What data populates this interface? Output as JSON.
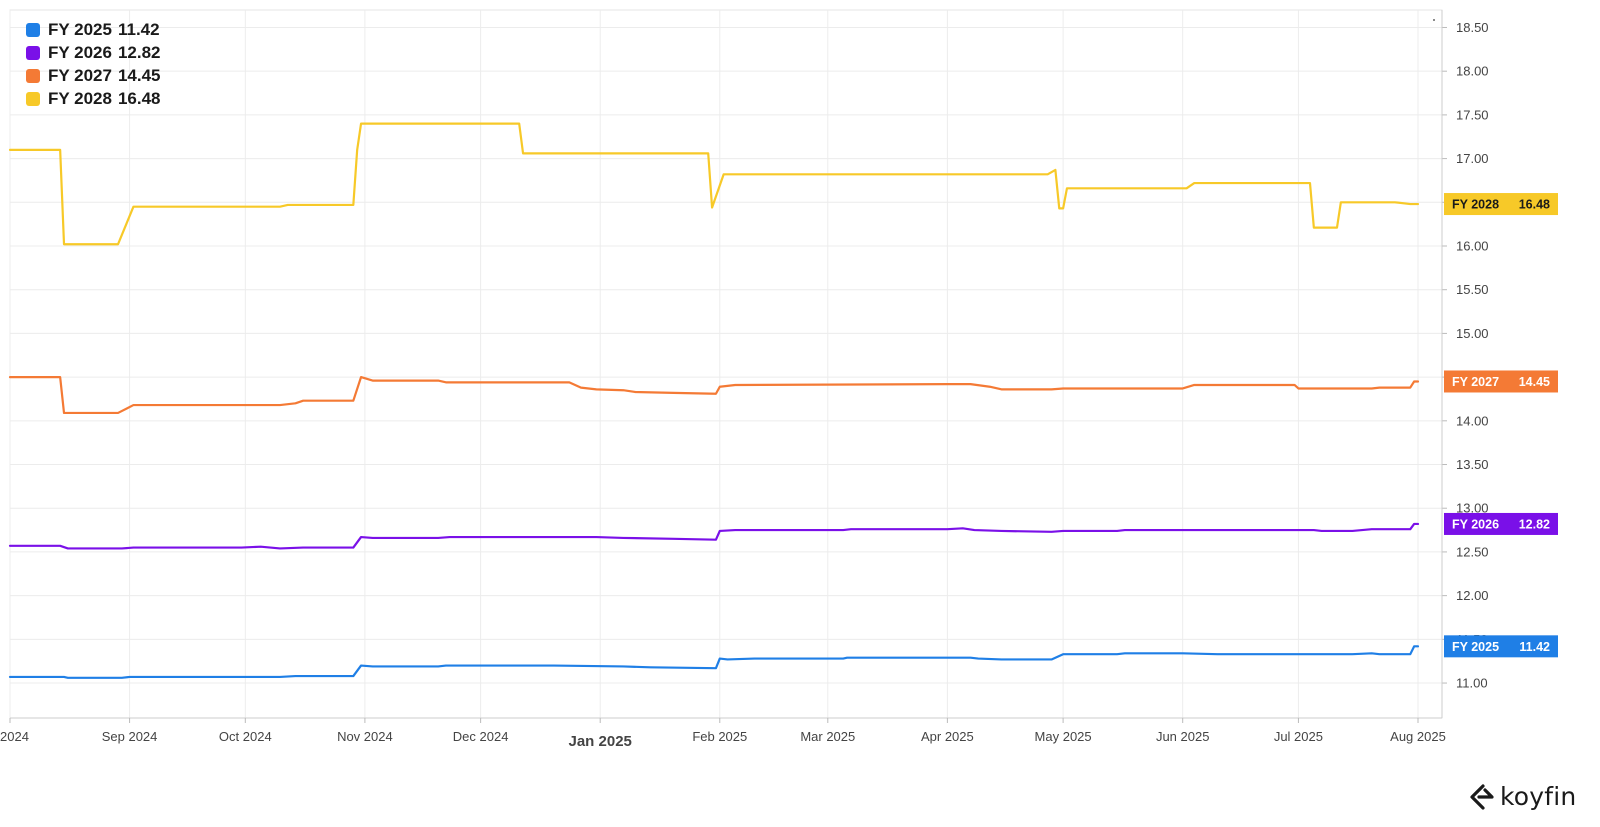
{
  "chart_data": {
    "type": "line",
    "title": "",
    "xlabel": "",
    "ylabel": "",
    "ylim": [
      10.6,
      18.7
    ],
    "y_ticks": [
      "11.00",
      "11.50",
      "12.00",
      "12.50",
      "13.00",
      "13.50",
      "14.00",
      "14.50",
      "15.00",
      "15.50",
      "16.00",
      "16.50",
      "17.00",
      "17.50",
      "18.00",
      "18.50"
    ],
    "x_ticks": [
      {
        "date": "2024-08-01",
        "label": "2024",
        "bold": false
      },
      {
        "date": "2024-09-01",
        "label": "Sep 2024",
        "bold": false
      },
      {
        "date": "2024-10-01",
        "label": "Oct 2024",
        "bold": false
      },
      {
        "date": "2024-11-01",
        "label": "Nov 2024",
        "bold": false
      },
      {
        "date": "2024-12-01",
        "label": "Dec 2024",
        "bold": false
      },
      {
        "date": "2025-01-01",
        "label": "Jan 2025",
        "bold": true
      },
      {
        "date": "2025-02-01",
        "label": "Feb 2025",
        "bold": false
      },
      {
        "date": "2025-03-01",
        "label": "Mar 2025",
        "bold": false
      },
      {
        "date": "2025-04-01",
        "label": "Apr 2025",
        "bold": false
      },
      {
        "date": "2025-05-01",
        "label": "May 2025",
        "bold": false
      },
      {
        "date": "2025-06-01",
        "label": "Jun 2025",
        "bold": false
      },
      {
        "date": "2025-07-01",
        "label": "Jul 2025",
        "bold": false
      },
      {
        "date": "2025-08-01",
        "label": "Aug 2025",
        "bold": false
      }
    ],
    "grid": true,
    "legend_position": "top-left",
    "series": [
      {
        "name": "FY 2025",
        "value_label": "11.42",
        "tag_label": "FY 2025",
        "color": "#1f7fe6",
        "points": [
          [
            "2024-08-01",
            11.07
          ],
          [
            "2024-08-15",
            11.07
          ],
          [
            "2024-08-16",
            11.06
          ],
          [
            "2024-08-30",
            11.06
          ],
          [
            "2024-09-01",
            11.07
          ],
          [
            "2024-10-10",
            11.07
          ],
          [
            "2024-10-14",
            11.08
          ],
          [
            "2024-10-29",
            11.08
          ],
          [
            "2024-10-31",
            11.2
          ],
          [
            "2024-11-03",
            11.19
          ],
          [
            "2024-11-20",
            11.19
          ],
          [
            "2024-11-22",
            11.2
          ],
          [
            "2024-12-20",
            11.2
          ],
          [
            "2025-01-07",
            11.19
          ],
          [
            "2025-01-14",
            11.18
          ],
          [
            "2025-01-31",
            11.17
          ],
          [
            "2025-02-01",
            11.28
          ],
          [
            "2025-02-03",
            11.27
          ],
          [
            "2025-02-10",
            11.28
          ],
          [
            "2025-03-05",
            11.28
          ],
          [
            "2025-03-06",
            11.29
          ],
          [
            "2025-04-07",
            11.29
          ],
          [
            "2025-04-09",
            11.28
          ],
          [
            "2025-04-15",
            11.27
          ],
          [
            "2025-04-28",
            11.27
          ],
          [
            "2025-05-01",
            11.33
          ],
          [
            "2025-05-15",
            11.33
          ],
          [
            "2025-05-17",
            11.34
          ],
          [
            "2025-06-01",
            11.34
          ],
          [
            "2025-06-10",
            11.33
          ],
          [
            "2025-07-15",
            11.33
          ],
          [
            "2025-07-20",
            11.34
          ],
          [
            "2025-07-22",
            11.33
          ],
          [
            "2025-07-30",
            11.33
          ],
          [
            "2025-07-31",
            11.42
          ],
          [
            "2025-08-01",
            11.42
          ]
        ]
      },
      {
        "name": "FY 2026",
        "value_label": "12.82",
        "tag_label": "FY 2026",
        "color": "#7a10e8",
        "points": [
          [
            "2024-08-01",
            12.57
          ],
          [
            "2024-08-14",
            12.57
          ],
          [
            "2024-08-16",
            12.54
          ],
          [
            "2024-08-30",
            12.54
          ],
          [
            "2024-09-02",
            12.55
          ],
          [
            "2024-09-30",
            12.55
          ],
          [
            "2024-10-05",
            12.56
          ],
          [
            "2024-10-10",
            12.54
          ],
          [
            "2024-10-16",
            12.55
          ],
          [
            "2024-10-29",
            12.55
          ],
          [
            "2024-10-31",
            12.67
          ],
          [
            "2024-11-03",
            12.66
          ],
          [
            "2024-11-20",
            12.66
          ],
          [
            "2024-11-23",
            12.67
          ],
          [
            "2024-12-20",
            12.67
          ],
          [
            "2024-12-31",
            12.67
          ],
          [
            "2025-01-07",
            12.66
          ],
          [
            "2025-01-20",
            12.65
          ],
          [
            "2025-01-31",
            12.64
          ],
          [
            "2025-02-01",
            12.74
          ],
          [
            "2025-02-05",
            12.75
          ],
          [
            "2025-03-05",
            12.75
          ],
          [
            "2025-03-07",
            12.76
          ],
          [
            "2025-04-01",
            12.76
          ],
          [
            "2025-04-05",
            12.77
          ],
          [
            "2025-04-08",
            12.75
          ],
          [
            "2025-04-15",
            12.74
          ],
          [
            "2025-04-28",
            12.73
          ],
          [
            "2025-05-01",
            12.74
          ],
          [
            "2025-05-15",
            12.74
          ],
          [
            "2025-05-17",
            12.75
          ],
          [
            "2025-07-05",
            12.75
          ],
          [
            "2025-07-07",
            12.74
          ],
          [
            "2025-07-15",
            12.74
          ],
          [
            "2025-07-20",
            12.76
          ],
          [
            "2025-07-23",
            12.76
          ],
          [
            "2025-07-30",
            12.76
          ],
          [
            "2025-07-31",
            12.82
          ],
          [
            "2025-08-01",
            12.82
          ]
        ]
      },
      {
        "name": "FY 2027",
        "value_label": "14.45",
        "tag_label": "FY 2027",
        "color": "#f47a35",
        "points": [
          [
            "2024-08-01",
            14.5
          ],
          [
            "2024-08-14",
            14.5
          ],
          [
            "2024-08-15",
            14.09
          ],
          [
            "2024-08-29",
            14.09
          ],
          [
            "2024-09-02",
            14.18
          ],
          [
            "2024-10-10",
            14.18
          ],
          [
            "2024-10-14",
            14.2
          ],
          [
            "2024-10-16",
            14.23
          ],
          [
            "2024-10-29",
            14.23
          ],
          [
            "2024-10-31",
            14.5
          ],
          [
            "2024-11-03",
            14.46
          ],
          [
            "2024-11-20",
            14.46
          ],
          [
            "2024-11-22",
            14.44
          ],
          [
            "2024-12-24",
            14.44
          ],
          [
            "2024-12-27",
            14.38
          ],
          [
            "2024-12-31",
            14.36
          ],
          [
            "2025-01-07",
            14.35
          ],
          [
            "2025-01-10",
            14.33
          ],
          [
            "2025-01-20",
            14.32
          ],
          [
            "2025-01-31",
            14.31
          ],
          [
            "2025-02-01",
            14.39
          ],
          [
            "2025-02-05",
            14.41
          ],
          [
            "2025-04-01",
            14.42
          ],
          [
            "2025-04-07",
            14.42
          ],
          [
            "2025-04-12",
            14.39
          ],
          [
            "2025-04-15",
            14.36
          ],
          [
            "2025-04-28",
            14.36
          ],
          [
            "2025-05-01",
            14.37
          ],
          [
            "2025-06-01",
            14.37
          ],
          [
            "2025-06-04",
            14.41
          ],
          [
            "2025-06-30",
            14.41
          ],
          [
            "2025-07-01",
            14.37
          ],
          [
            "2025-07-20",
            14.37
          ],
          [
            "2025-07-22",
            14.38
          ],
          [
            "2025-07-30",
            14.38
          ],
          [
            "2025-07-31",
            14.45
          ],
          [
            "2025-08-01",
            14.45
          ]
        ]
      },
      {
        "name": "FY 2028",
        "value_label": "16.48",
        "tag_label": "FY 2028",
        "color": "#f7c928",
        "points": [
          [
            "2024-08-01",
            17.1
          ],
          [
            "2024-08-14",
            17.1
          ],
          [
            "2024-08-15",
            16.02
          ],
          [
            "2024-08-29",
            16.02
          ],
          [
            "2024-09-02",
            16.45
          ],
          [
            "2024-10-10",
            16.45
          ],
          [
            "2024-10-12",
            16.47
          ],
          [
            "2024-10-29",
            16.47
          ],
          [
            "2024-10-30",
            17.1
          ],
          [
            "2024-10-31",
            17.4
          ],
          [
            "2024-12-11",
            17.4
          ],
          [
            "2024-12-12",
            17.06
          ],
          [
            "2025-01-29",
            17.06
          ],
          [
            "2025-01-30",
            16.44
          ],
          [
            "2025-02-02",
            16.82
          ],
          [
            "2025-04-27",
            16.82
          ],
          [
            "2025-04-29",
            16.87
          ],
          [
            "2025-04-30",
            16.43
          ],
          [
            "2025-05-01",
            16.43
          ],
          [
            "2025-05-02",
            16.66
          ],
          [
            "2025-06-02",
            16.66
          ],
          [
            "2025-06-04",
            16.72
          ],
          [
            "2025-07-04",
            16.72
          ],
          [
            "2025-07-05",
            16.21
          ],
          [
            "2025-07-11",
            16.21
          ],
          [
            "2025-07-12",
            16.5
          ],
          [
            "2025-07-26",
            16.5
          ],
          [
            "2025-07-30",
            16.48
          ],
          [
            "2025-08-01",
            16.48
          ]
        ]
      }
    ]
  },
  "legend": [
    {
      "label": "FY 2025",
      "value": "11.42",
      "color": "#1f7fe6"
    },
    {
      "label": "FY 2026",
      "value": "12.82",
      "color": "#7a10e8"
    },
    {
      "label": "FY 2027",
      "value": "14.45",
      "color": "#f47a35"
    },
    {
      "label": "FY 2028",
      "value": "16.48",
      "color": "#f7c928"
    }
  ],
  "branding": {
    "logo_text": "koyfin",
    "logo_icon": "koyfin-logo-icon"
  }
}
